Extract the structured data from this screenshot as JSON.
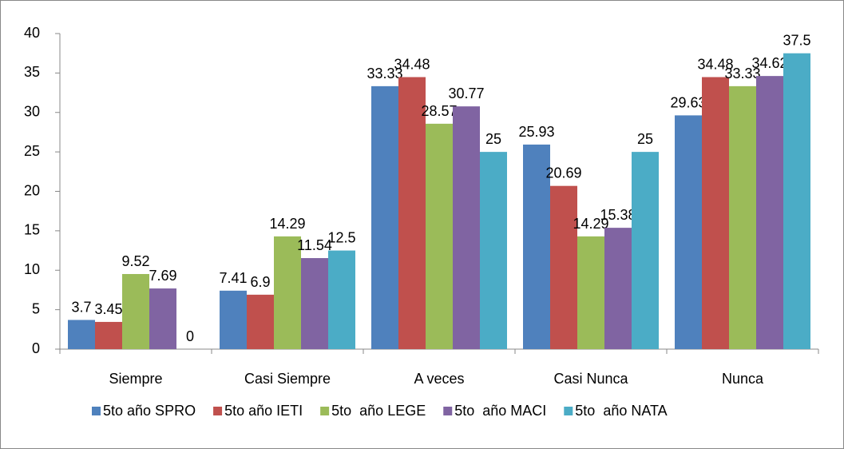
{
  "chart_data": {
    "type": "bar",
    "categories": [
      "Siempre",
      "Casi Siempre",
      "A veces",
      "Casi Nunca",
      "Nunca"
    ],
    "series": [
      {
        "name": "5to año SPRO",
        "color": "#4f81bd",
        "values": [
          3.7,
          7.41,
          33.33,
          25.93,
          29.63
        ]
      },
      {
        "name": "5to año IETI",
        "color": "#c0504d",
        "values": [
          3.45,
          6.9,
          34.48,
          20.69,
          34.48
        ]
      },
      {
        "name": "5to  año LEGE",
        "color": "#9bbb59",
        "values": [
          9.52,
          14.29,
          28.57,
          14.29,
          33.33
        ]
      },
      {
        "name": "5to  año MACI",
        "color": "#8064a2",
        "values": [
          7.69,
          11.54,
          30.77,
          15.38,
          34.62
        ]
      },
      {
        "name": "5to  año NATA",
        "color": "#4bacc6",
        "values": [
          0,
          12.5,
          25,
          25,
          37.5
        ]
      }
    ],
    "ylim": [
      0,
      40
    ],
    "yticks": [
      0,
      5,
      10,
      15,
      20,
      25,
      30,
      35,
      40
    ],
    "grid": false,
    "legend": "bottom"
  }
}
